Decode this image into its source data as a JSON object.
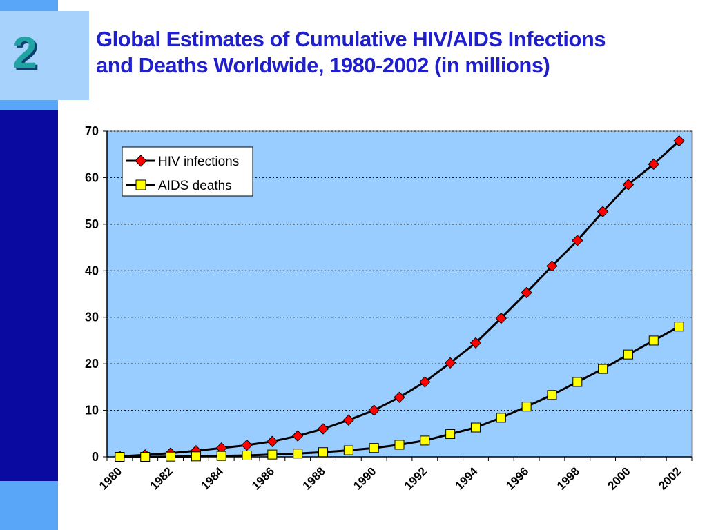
{
  "slide": {
    "number": "2",
    "title_line1": "Global Estimates of Cumulative HIV/AIDS Infections",
    "title_line2": "and Deaths Worldwide, 1980-2002 (in millions)"
  },
  "colors": {
    "sidebar_dark": "#0a0aa0",
    "sidebar_light": "#59a5f7",
    "number_box": "#a7d2fb",
    "title": "#1f1fcc",
    "plot_bg": "#99ccff",
    "hiv_marker": "#ff0000",
    "aids_marker": "#ffff00"
  },
  "chart_data": {
    "type": "line",
    "x": [
      1980,
      1981,
      1982,
      1983,
      1984,
      1985,
      1986,
      1987,
      1988,
      1989,
      1990,
      1991,
      1992,
      1993,
      1994,
      1995,
      1996,
      1997,
      1998,
      1999,
      2000,
      2001,
      2002
    ],
    "x_tick_labels": [
      "1980",
      "1982",
      "1984",
      "1986",
      "1988",
      "1990",
      "1992",
      "1994",
      "1996",
      "1998",
      "2000",
      "2002"
    ],
    "series": [
      {
        "name": "HIV infections",
        "marker": "diamond",
        "values": [
          0.1,
          0.4,
          0.8,
          1.3,
          1.9,
          2.5,
          3.3,
          4.5,
          6.0,
          7.9,
          10.0,
          12.8,
          16.1,
          20.2,
          24.5,
          29.8,
          35.3,
          41.0,
          46.5,
          52.7,
          58.5,
          62.9,
          67.9
        ]
      },
      {
        "name": "AIDS deaths",
        "marker": "square",
        "values": [
          0.0,
          0.0,
          0.05,
          0.1,
          0.2,
          0.3,
          0.5,
          0.7,
          1.0,
          1.4,
          1.9,
          2.6,
          3.5,
          4.9,
          6.3,
          8.4,
          10.8,
          13.3,
          16.1,
          18.9,
          22.0,
          25.0,
          28.0
        ]
      }
    ],
    "ylim": [
      0,
      70
    ],
    "y_ticks": [
      0,
      10,
      20,
      30,
      40,
      50,
      60,
      70
    ],
    "grid": "horizontal dotted",
    "legend_position": "top-left"
  }
}
